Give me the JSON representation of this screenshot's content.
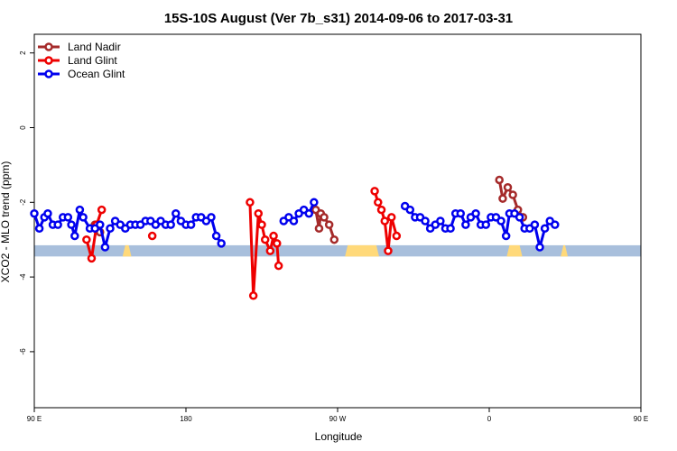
{
  "chart_data": {
    "type": "line",
    "title": "15S-10S August (Ver 7b_s31)   2014-09-06 to 2017-03-31",
    "xlabel": "Longitude",
    "ylabel": "XCO2 - MLO trend (ppm)",
    "xlim": [
      90,
      450
    ],
    "ylim": [
      -7.5,
      2.5
    ],
    "x_ticks": [
      {
        "value": 90,
        "label": "90 E"
      },
      {
        "value": 180,
        "label": "180"
      },
      {
        "value": 270,
        "label": "90 W"
      },
      {
        "value": 360,
        "label": "0"
      },
      {
        "value": 450,
        "label": "90 E"
      },
      {
        "value": 540,
        "label": "180"
      }
    ],
    "y_ticks": [
      {
        "value": 2,
        "label": "2"
      },
      {
        "value": 0,
        "label": "0"
      },
      {
        "value": -2,
        "label": "-2"
      },
      {
        "value": -4,
        "label": "-4"
      },
      {
        "value": -6,
        "label": "-6"
      }
    ],
    "legend_position": "top-left",
    "grid": false,
    "land_band": {
      "y_top": -3.15,
      "y_bottom": -3.45,
      "ocean_color": "#a8bfdc",
      "land_color": "#ffd97a",
      "land_spans": [
        [
          144,
          146
        ],
        [
          276,
          293
        ],
        [
          372,
          378
        ],
        [
          404,
          405
        ],
        [
          490,
          497
        ],
        [
          509,
          512
        ]
      ]
    },
    "series": [
      {
        "name": "Land Nadir",
        "color": "#a52a2a",
        "points": [
          [
            126,
            -2.6
          ],
          [
            129,
            -2.8
          ],
          [
            257,
            -2.2
          ],
          [
            259,
            -2.7
          ],
          [
            260,
            -2.3
          ],
          [
            262,
            -2.4
          ],
          [
            265,
            -2.6
          ],
          [
            268,
            -3.0
          ],
          [
            366,
            -1.4
          ],
          [
            368,
            -1.9
          ],
          [
            371,
            -1.6
          ],
          [
            374,
            -1.8
          ],
          [
            377,
            -2.2
          ],
          [
            380,
            -2.4
          ],
          [
            484,
            -2.8
          ],
          [
            487,
            -2.8
          ],
          [
            490,
            -2.6
          ]
        ]
      },
      {
        "name": "Land Glint",
        "color": "#ee0000",
        "points": [
          [
            121,
            -3.0
          ],
          [
            124,
            -3.5
          ],
          [
            127,
            -2.6
          ],
          [
            130,
            -2.2
          ],
          [
            160,
            -2.9
          ],
          [
            218,
            -2.0
          ],
          [
            220,
            -4.5
          ],
          [
            223,
            -2.3
          ],
          [
            225,
            -2.6
          ],
          [
            227,
            -3.0
          ],
          [
            230,
            -3.3
          ],
          [
            232,
            -2.9
          ],
          [
            234,
            -3.1
          ],
          [
            235,
            -3.7
          ],
          [
            292,
            -1.7
          ],
          [
            294,
            -2.0
          ],
          [
            296,
            -2.2
          ],
          [
            298,
            -2.5
          ],
          [
            300,
            -3.3
          ],
          [
            302,
            -2.4
          ],
          [
            305,
            -2.9
          ],
          [
            477,
            -3.0
          ],
          [
            479,
            -3.5
          ],
          [
            481,
            -2.6
          ],
          [
            483,
            -2.2
          ]
        ]
      },
      {
        "name": "Ocean Glint",
        "color": "#0000ee",
        "points": [
          [
            90,
            -2.3
          ],
          [
            93,
            -2.7
          ],
          [
            96,
            -2.4
          ],
          [
            98,
            -2.3
          ],
          [
            101,
            -2.6
          ],
          [
            104,
            -2.6
          ],
          [
            107,
            -2.4
          ],
          [
            110,
            -2.4
          ],
          [
            112,
            -2.6
          ],
          [
            114,
            -2.9
          ],
          [
            117,
            -2.2
          ],
          [
            119,
            -2.4
          ],
          [
            123,
            -2.7
          ],
          [
            126,
            -2.7
          ],
          [
            129,
            -2.6
          ],
          [
            132,
            -3.2
          ],
          [
            135,
            -2.7
          ],
          [
            138,
            -2.5
          ],
          [
            141,
            -2.6
          ],
          [
            144,
            -2.7
          ],
          [
            147,
            -2.6
          ],
          [
            150,
            -2.6
          ],
          [
            153,
            -2.6
          ],
          [
            156,
            -2.5
          ],
          [
            159,
            -2.5
          ],
          [
            162,
            -2.6
          ],
          [
            165,
            -2.5
          ],
          [
            168,
            -2.6
          ],
          [
            171,
            -2.6
          ],
          [
            174,
            -2.3
          ],
          [
            177,
            -2.5
          ],
          [
            180,
            -2.6
          ],
          [
            183,
            -2.6
          ],
          [
            186,
            -2.4
          ],
          [
            189,
            -2.4
          ],
          [
            192,
            -2.5
          ],
          [
            195,
            -2.4
          ],
          [
            198,
            -2.9
          ],
          [
            201,
            -3.1
          ],
          [
            238,
            -2.5
          ],
          [
            241,
            -2.4
          ],
          [
            244,
            -2.5
          ],
          [
            247,
            -2.3
          ],
          [
            250,
            -2.2
          ],
          [
            253,
            -2.3
          ],
          [
            256,
            -2.0
          ],
          [
            310,
            -2.1
          ],
          [
            313,
            -2.2
          ],
          [
            316,
            -2.4
          ],
          [
            319,
            -2.4
          ],
          [
            322,
            -2.5
          ],
          [
            325,
            -2.7
          ],
          [
            328,
            -2.6
          ],
          [
            331,
            -2.5
          ],
          [
            334,
            -2.7
          ],
          [
            337,
            -2.7
          ],
          [
            340,
            -2.3
          ],
          [
            343,
            -2.3
          ],
          [
            346,
            -2.6
          ],
          [
            349,
            -2.4
          ],
          [
            352,
            -2.3
          ],
          [
            355,
            -2.6
          ],
          [
            358,
            -2.6
          ],
          [
            361,
            -2.4
          ],
          [
            364,
            -2.4
          ],
          [
            367,
            -2.5
          ],
          [
            370,
            -2.9
          ],
          [
            372,
            -2.3
          ],
          [
            375,
            -2.3
          ],
          [
            378,
            -2.4
          ],
          [
            381,
            -2.7
          ],
          [
            384,
            -2.7
          ],
          [
            387,
            -2.6
          ],
          [
            390,
            -3.2
          ],
          [
            393,
            -2.7
          ],
          [
            396,
            -2.5
          ],
          [
            399,
            -2.6
          ]
        ]
      }
    ]
  }
}
